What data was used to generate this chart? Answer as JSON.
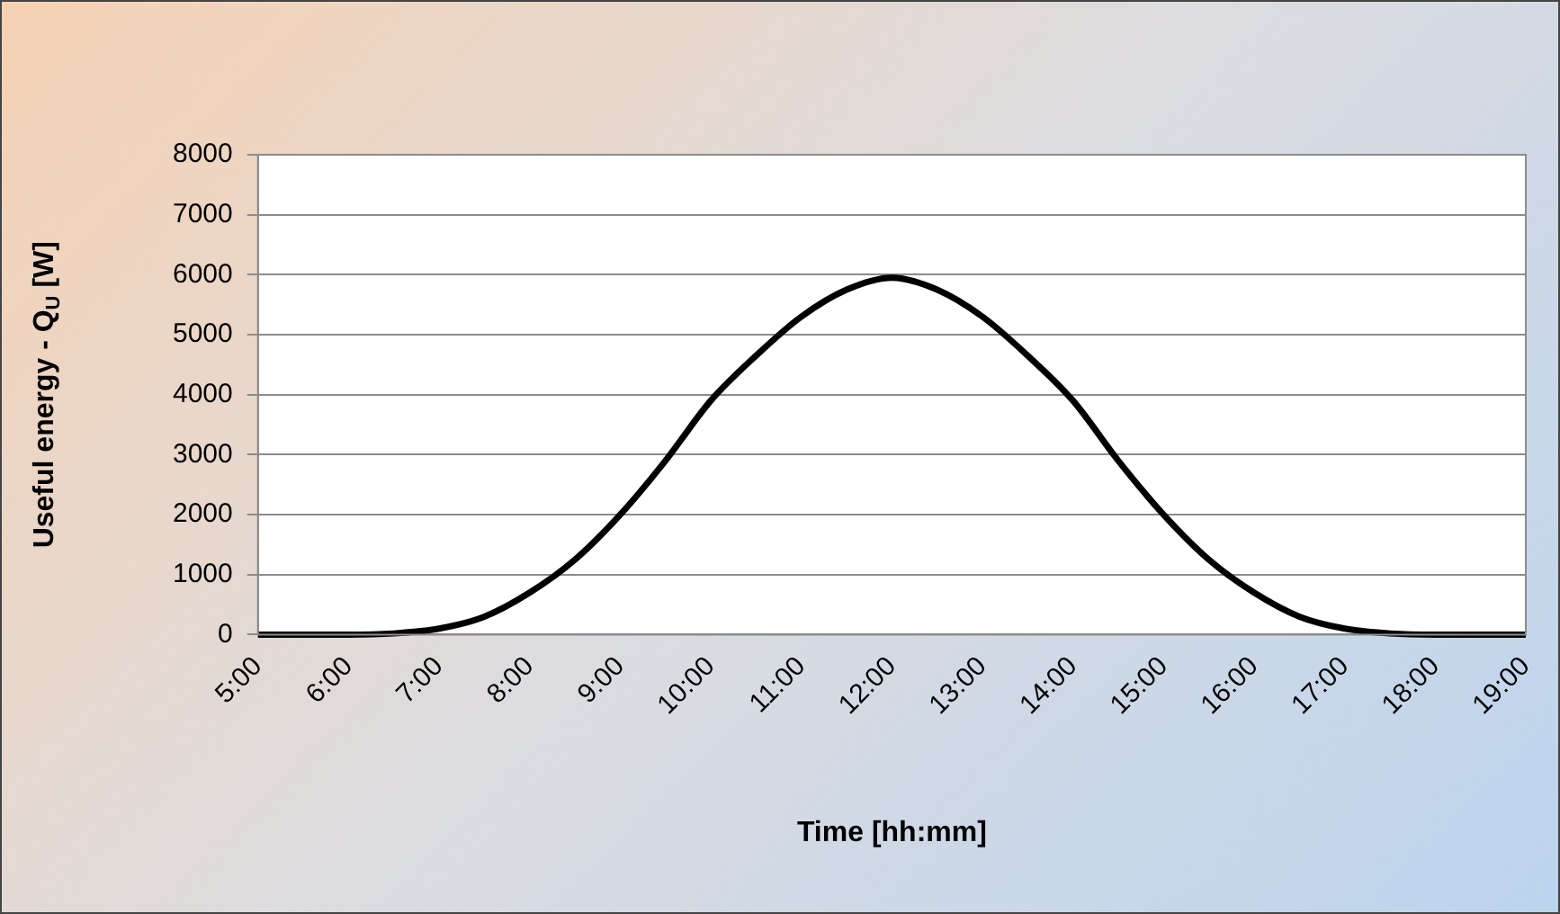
{
  "chart_data": {
    "type": "line",
    "xlabel": "Time [hh:mm]",
    "ylabel": "Useful energy - Q$_{U}$ [W]",
    "x": [
      5,
      5.5,
      6,
      6.5,
      7,
      7.5,
      8,
      8.5,
      9,
      9.5,
      10,
      10.5,
      11,
      11.5,
      12,
      12.5,
      13,
      13.5,
      14,
      14.5,
      15,
      15.5,
      16,
      16.5,
      17,
      17.5,
      18,
      18.5,
      19
    ],
    "series": [
      {
        "color": "#000000",
        "values": [
          0,
          0,
          0,
          20,
          100,
          300,
          700,
          1250,
          2000,
          2900,
          3900,
          4650,
          5300,
          5750,
          5950,
          5750,
          5300,
          4650,
          3900,
          2900,
          2000,
          1250,
          700,
          300,
          100,
          20,
          0,
          0,
          0
        ]
      }
    ],
    "xlim": [
      5,
      19
    ],
    "xticks": [
      {
        "value": 5,
        "label": "5:00"
      },
      {
        "value": 6,
        "label": "6:00"
      },
      {
        "value": 7,
        "label": "7:00"
      },
      {
        "value": 8,
        "label": "8:00"
      },
      {
        "value": 9,
        "label": "9:00"
      },
      {
        "value": 10,
        "label": "10:00"
      },
      {
        "value": 11,
        "label": "11:00"
      },
      {
        "value": 12,
        "label": "12:00"
      },
      {
        "value": 13,
        "label": "13:00"
      },
      {
        "value": 14,
        "label": "14:00"
      },
      {
        "value": 15,
        "label": "15:00"
      },
      {
        "value": 16,
        "label": "16:00"
      },
      {
        "value": 17,
        "label": "17:00"
      },
      {
        "value": 18,
        "label": "18:00"
      },
      {
        "value": 19,
        "label": "19:00"
      }
    ],
    "ylim": [
      0,
      8000
    ],
    "yticks": [
      0,
      1000,
      2000,
      3000,
      4000,
      5000,
      6000,
      7000,
      8000
    ],
    "grid": "y",
    "legend": false,
    "marker": "none",
    "line_style": "solid"
  }
}
